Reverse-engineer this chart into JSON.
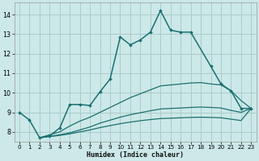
{
  "xlabel": "Humidex (Indice chaleur)",
  "background_color": "#cce8e8",
  "grid_color": "#aacccc",
  "line_color": "#1a7070",
  "xlim": [
    -0.5,
    23.5
  ],
  "ylim": [
    7.5,
    14.6
  ],
  "yticks": [
    8,
    9,
    10,
    11,
    12,
    13,
    14
  ],
  "xticks": [
    0,
    1,
    2,
    3,
    4,
    5,
    6,
    7,
    8,
    9,
    10,
    11,
    12,
    13,
    14,
    15,
    16,
    17,
    18,
    19,
    20,
    21,
    22,
    23
  ],
  "main_line": {
    "x": [
      0,
      1,
      2,
      3,
      4,
      5,
      6,
      7,
      8,
      9,
      10,
      11,
      12,
      13,
      14,
      15,
      16,
      17,
      19,
      20,
      21,
      22,
      23
    ],
    "y": [
      9.0,
      8.6,
      7.7,
      7.8,
      8.2,
      9.4,
      9.4,
      9.35,
      10.05,
      10.7,
      12.85,
      12.45,
      12.7,
      13.1,
      14.2,
      13.2,
      13.1,
      13.1,
      11.35,
      10.45,
      10.1,
      9.2,
      9.2
    ]
  },
  "smooth_lines": [
    {
      "x": [
        2,
        4,
        5,
        6,
        7,
        8,
        9,
        10,
        11,
        12,
        13,
        14,
        15,
        16,
        17,
        18,
        19,
        20,
        21,
        22,
        23
      ],
      "y": [
        7.7,
        8.0,
        8.3,
        8.55,
        8.75,
        9.0,
        9.25,
        9.5,
        9.75,
        9.95,
        10.15,
        10.35,
        10.4,
        10.45,
        10.5,
        10.52,
        10.45,
        10.4,
        10.1,
        9.6,
        9.2
      ]
    },
    {
      "x": [
        2,
        4,
        5,
        6,
        7,
        8,
        9,
        10,
        11,
        12,
        13,
        14,
        15,
        16,
        17,
        18,
        19,
        20,
        21,
        22,
        23
      ],
      "y": [
        7.7,
        7.85,
        7.95,
        8.1,
        8.25,
        8.45,
        8.6,
        8.75,
        8.88,
        8.98,
        9.08,
        9.17,
        9.2,
        9.22,
        9.25,
        9.27,
        9.25,
        9.22,
        9.1,
        9.0,
        9.2
      ]
    },
    {
      "x": [
        2,
        4,
        5,
        6,
        7,
        8,
        9,
        10,
        11,
        12,
        13,
        14,
        15,
        16,
        17,
        18,
        19,
        20,
        21,
        22,
        23
      ],
      "y": [
        7.7,
        7.82,
        7.9,
        8.0,
        8.1,
        8.22,
        8.32,
        8.42,
        8.5,
        8.57,
        8.63,
        8.68,
        8.7,
        8.72,
        8.74,
        8.75,
        8.74,
        8.72,
        8.65,
        8.58,
        9.2
      ]
    }
  ]
}
